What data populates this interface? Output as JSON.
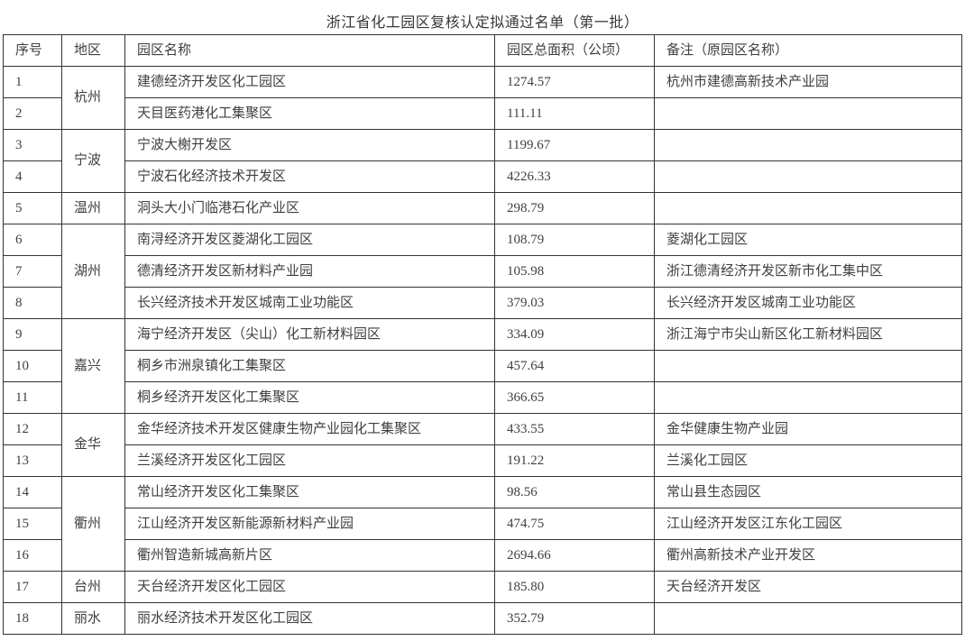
{
  "title": "浙江省化工园区复核认定拟通过名单（第一批）",
  "table": {
    "columns": {
      "no": "序号",
      "region": "地区",
      "park": "园区名称",
      "area": "园区总面积（公顷）",
      "note": "备注（原园区名称）"
    },
    "rows": [
      {
        "no": "1",
        "region": "杭州",
        "region_rowspan": 2,
        "park": "建德经济开发区化工园区",
        "area": "1274.57",
        "note": "杭州市建德高新技术产业园"
      },
      {
        "no": "2",
        "park": "天目医药港化工集聚区",
        "area": "111.11",
        "note": ""
      },
      {
        "no": "3",
        "region": "宁波",
        "region_rowspan": 2,
        "park": "宁波大榭开发区",
        "area": "1199.67",
        "note": ""
      },
      {
        "no": "4",
        "park": "宁波石化经济技术开发区",
        "area": "4226.33",
        "note": ""
      },
      {
        "no": "5",
        "region": "温州",
        "region_rowspan": 1,
        "park": "洞头大小门临港石化产业区",
        "area": "298.79",
        "note": ""
      },
      {
        "no": "6",
        "region": "湖州",
        "region_rowspan": 3,
        "park": "南浔经济开发区菱湖化工园区",
        "area": "108.79",
        "note": "菱湖化工园区"
      },
      {
        "no": "7",
        "park": "德清经济开发区新材料产业园",
        "area": "105.98",
        "note": "浙江德清经济开发区新市化工集中区"
      },
      {
        "no": "8",
        "park": "长兴经济技术开发区城南工业功能区",
        "area": "379.03",
        "note": "长兴经济开发区城南工业功能区"
      },
      {
        "no": "9",
        "region": "嘉兴",
        "region_rowspan": 3,
        "park": "海宁经济开发区（尖山）化工新材料园区",
        "area": "334.09",
        "note": "浙江海宁市尖山新区化工新材料园区"
      },
      {
        "no": "10",
        "park": "桐乡市洲泉镇化工集聚区",
        "area": "457.64",
        "note": ""
      },
      {
        "no": "11",
        "park": "桐乡经济开发区化工集聚区",
        "area": "366.65",
        "note": ""
      },
      {
        "no": "12",
        "region": "金华",
        "region_rowspan": 2,
        "park": "金华经济技术开发区健康生物产业园化工集聚区",
        "area": "433.55",
        "note": "金华健康生物产业园"
      },
      {
        "no": "13",
        "park": "兰溪经济开发区化工园区",
        "area": "191.22",
        "note": "兰溪化工园区"
      },
      {
        "no": "14",
        "region": "衢州",
        "region_rowspan": 3,
        "park": "常山经济开发区化工集聚区",
        "area": "98.56",
        "note": "常山县生态园区"
      },
      {
        "no": "15",
        "park": "江山经济开发区新能源新材料产业园",
        "area": "474.75",
        "note": "江山经济开发区江东化工园区"
      },
      {
        "no": "16",
        "park": "衢州智造新城高新片区",
        "area": "2694.66",
        "note": "衢州高新技术产业开发区"
      },
      {
        "no": "17",
        "region": "台州",
        "region_rowspan": 1,
        "park": "天台经济开发区化工园区",
        "area": "185.80",
        "note": "天台经济开发区"
      },
      {
        "no": "18",
        "region": "丽水",
        "region_rowspan": 1,
        "park": "丽水经济技术开发区化工园区",
        "area": "352.79",
        "note": ""
      }
    ]
  }
}
